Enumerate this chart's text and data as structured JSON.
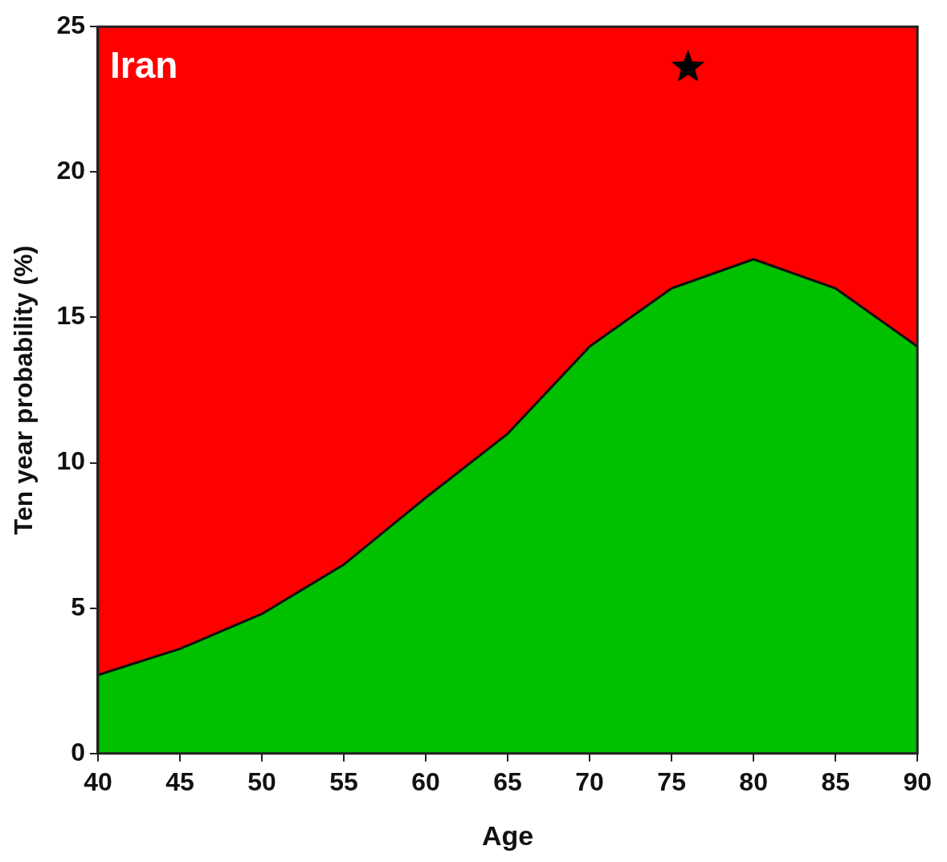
{
  "chart_data": {
    "type": "area",
    "xlabel": "Age",
    "ylabel": "Ten year probability (%)",
    "annotations": [
      "Iran"
    ],
    "xlim": [
      40,
      90
    ],
    "xticks": [
      40,
      45,
      50,
      55,
      60,
      65,
      70,
      75,
      80,
      85,
      90
    ],
    "ylim": [
      0,
      25
    ],
    "yticks": [
      0,
      5,
      10,
      15,
      20,
      25
    ],
    "legend": false,
    "bands": [
      {
        "axis": "y",
        "from": 0,
        "to": 25,
        "color": "#ff0000"
      }
    ],
    "series": [
      {
        "type": "area",
        "color": "#00c000",
        "x": [
          40,
          45,
          50,
          55,
          60,
          65,
          70,
          75,
          80,
          85,
          90
        ],
        "values": [
          2.7,
          3.6,
          4.8,
          6.5,
          8.8,
          11,
          14,
          16,
          17,
          16,
          14
        ],
        "line_style": "solid"
      },
      {
        "type": "scatter",
        "color": "#000000",
        "marker": "star",
        "x": [
          76
        ],
        "values": [
          23.6
        ]
      }
    ]
  }
}
